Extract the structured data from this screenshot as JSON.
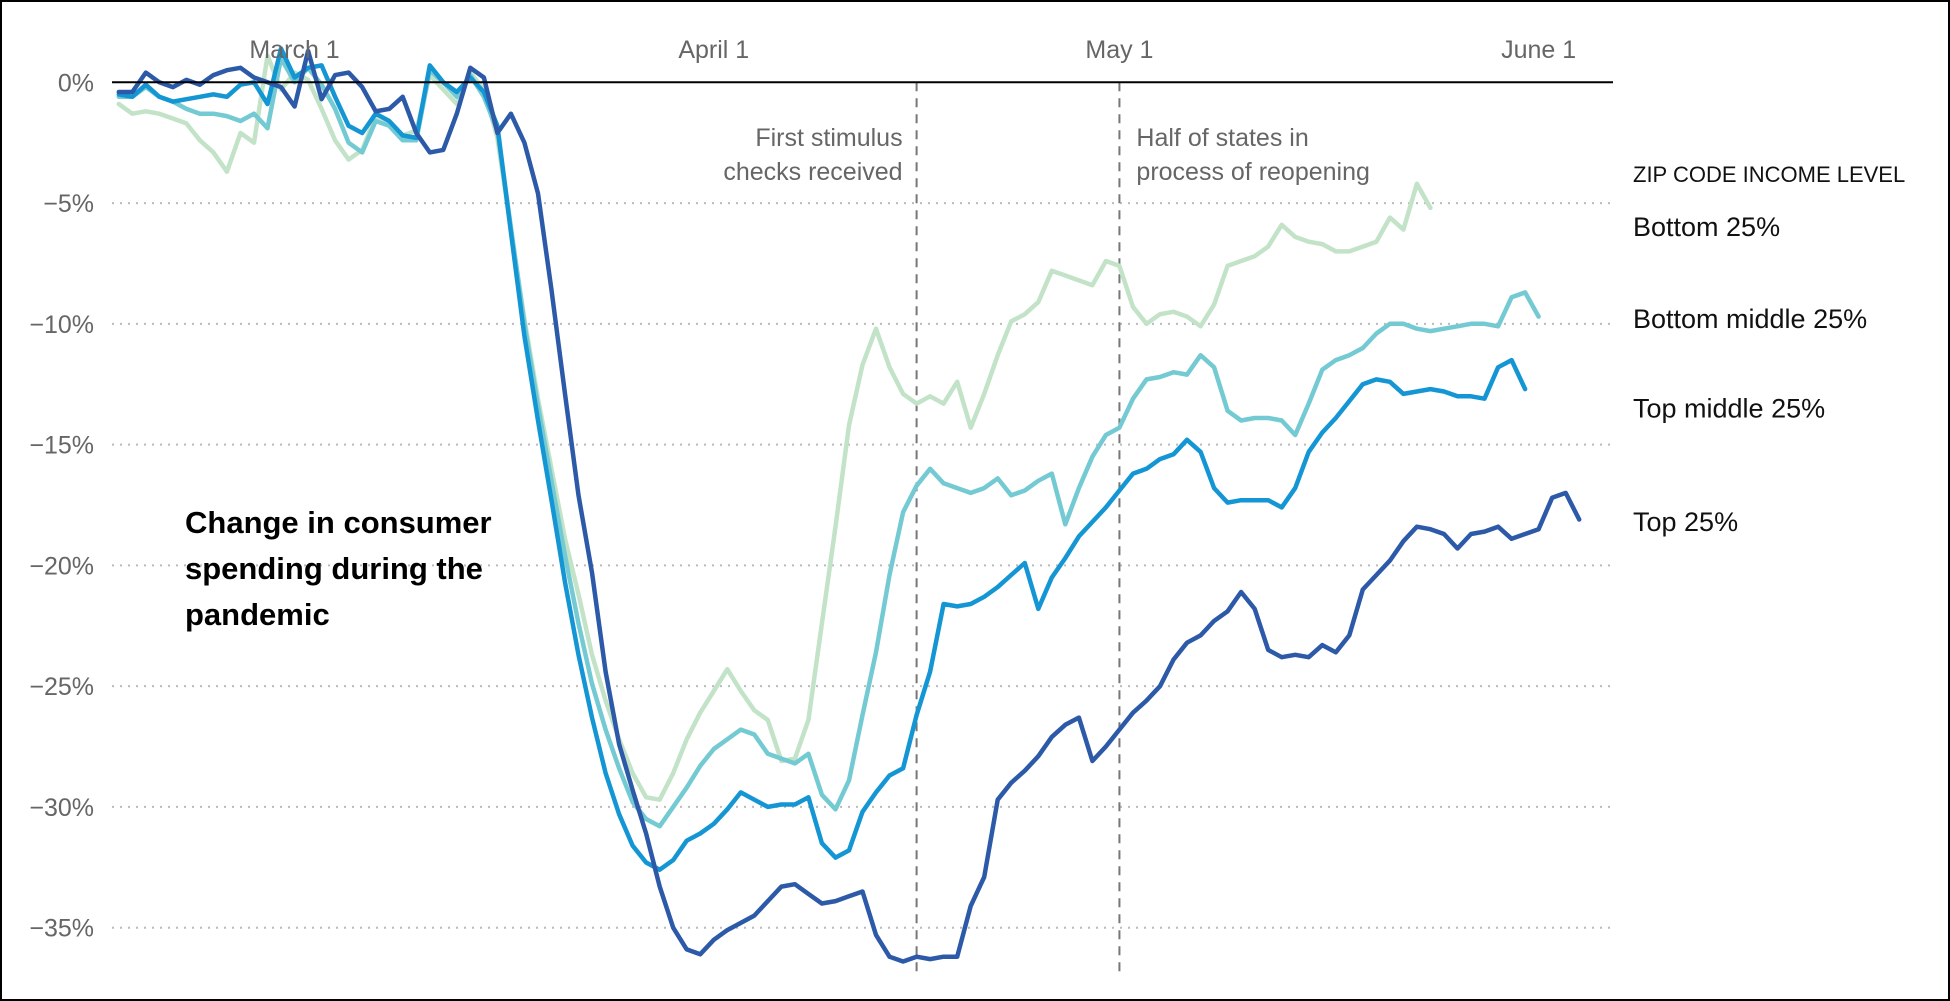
{
  "chart_data": {
    "type": "line",
    "title": "Change in consumer spending during the pandemic",
    "title_lines": [
      "Change in consumer",
      "spending during the",
      "pandemic"
    ],
    "xlabel": "",
    "ylabel": "",
    "x_ticks": [
      "March 1",
      "April 1",
      "May 1",
      "June 1"
    ],
    "x_tick_days": [
      0,
      31,
      61,
      92
    ],
    "x_start_day": -13,
    "xlim": [
      -13.5,
      97.5
    ],
    "y_ticks": [
      0,
      -5,
      -10,
      -15,
      -20,
      -25,
      -30,
      -35
    ],
    "y_tick_labels": [
      "0%",
      "−5%",
      "−10%",
      "−15%",
      "−20%",
      "−25%",
      "−30%",
      "−35%"
    ],
    "ylim": [
      -37,
      2
    ],
    "grid": "dotted-horizontal",
    "annotations": [
      {
        "name": "stimulus",
        "day": 46,
        "lines": [
          "First stimulus",
          "checks received"
        ],
        "align": "end"
      },
      {
        "name": "reopening",
        "day": 61,
        "lines": [
          "Half of states in",
          "process of reopening"
        ],
        "align": "start"
      }
    ],
    "legend_title": "ZIP CODE INCOME LEVEL",
    "series": [
      {
        "name": "Bottom 25%",
        "color": "#c3e3c8",
        "label_value": -6,
        "values": [
          -0.9,
          -1.3,
          -1.2,
          -1.3,
          -1.5,
          -1.7,
          -2.4,
          -2.9,
          -3.7,
          -2.1,
          -2.5,
          1.1,
          -0.3,
          0.4,
          0.1,
          -1.1,
          -2.4,
          -3.2,
          -2.8,
          -1.4,
          -1.6,
          -2.2,
          -2.0,
          0.3,
          -0.3,
          -0.9,
          0.4,
          -0.3,
          -2.3,
          -6.1,
          -9.8,
          -13.1,
          -16.0,
          -18.9,
          -21.2,
          -23.7,
          -25.6,
          -27.2,
          -28.6,
          -29.6,
          -29.7,
          -28.6,
          -27.2,
          -26.1,
          -25.2,
          -24.3,
          -25.2,
          -26.0,
          -26.4,
          -28.1,
          -28.0,
          -26.4,
          -22.4,
          -18.4,
          -14.2,
          -11.7,
          -10.2,
          -11.8,
          -12.9,
          -13.3,
          -13.0,
          -13.3,
          -12.4,
          -14.3,
          -12.9,
          -11.3,
          -9.9,
          -9.6,
          -9.1,
          -7.8,
          -8.0,
          -8.2,
          -8.4,
          -7.4,
          -7.6,
          -9.3,
          -10.0,
          -9.6,
          -9.5,
          -9.7,
          -10.1,
          -9.2,
          -7.6,
          -7.4,
          -7.2,
          -6.8,
          -5.9,
          -6.4,
          -6.6,
          -6.7,
          -7.0,
          -7.0,
          -6.8,
          -6.6,
          -5.6,
          -6.1,
          -4.2,
          -5.2
        ]
      },
      {
        "name": "Bottom middle 25%",
        "color": "#74cad2",
        "label_value": -9.8,
        "values": [
          -0.6,
          -0.6,
          -0.2,
          -0.6,
          -0.8,
          -1.1,
          -1.3,
          -1.3,
          -1.4,
          -1.6,
          -1.3,
          -1.9,
          1.0,
          0.0,
          0.6,
          -0.1,
          -1.1,
          -2.5,
          -2.9,
          -1.6,
          -1.8,
          -2.4,
          -2.4,
          0.5,
          0.0,
          -0.6,
          0.3,
          -0.6,
          -2.0,
          -6.0,
          -10.0,
          -13.4,
          -16.5,
          -19.6,
          -22.4,
          -24.9,
          -26.8,
          -28.4,
          -29.8,
          -30.5,
          -30.8,
          -30.0,
          -29.2,
          -28.3,
          -27.6,
          -27.2,
          -26.8,
          -27.0,
          -27.8,
          -28.0,
          -28.2,
          -27.8,
          -29.5,
          -30.1,
          -28.9,
          -26.2,
          -23.6,
          -20.4,
          -17.8,
          -16.7,
          -16.0,
          -16.6,
          -16.8,
          -17.0,
          -16.8,
          -16.4,
          -17.1,
          -16.9,
          -16.5,
          -16.2,
          -18.3,
          -16.8,
          -15.5,
          -14.6,
          -14.3,
          -13.1,
          -12.3,
          -12.2,
          -12.0,
          -12.1,
          -11.3,
          -11.8,
          -13.6,
          -14.0,
          -13.9,
          -13.9,
          -14.0,
          -14.6,
          -13.3,
          -11.9,
          -11.5,
          -11.3,
          -11.0,
          -10.4,
          -10.0,
          -10.0,
          -10.2,
          -10.3,
          -10.2,
          -10.1,
          -10.0,
          -10.0,
          -10.1,
          -8.9,
          -8.7,
          -9.7
        ]
      },
      {
        "name": "Top middle 25%",
        "color": "#1496d4",
        "label_value": -13.5,
        "values": [
          -0.5,
          -0.6,
          -0.1,
          -0.6,
          -0.8,
          -0.7,
          -0.6,
          -0.5,
          -0.6,
          -0.1,
          0.0,
          -0.9,
          1.4,
          0.2,
          0.6,
          0.7,
          -0.6,
          -1.8,
          -2.1,
          -1.3,
          -1.6,
          -2.2,
          -2.3,
          0.7,
          0.0,
          -0.4,
          0.2,
          -0.4,
          -1.8,
          -6.2,
          -10.5,
          -14.0,
          -17.3,
          -20.7,
          -23.7,
          -26.3,
          -28.6,
          -30.3,
          -31.6,
          -32.3,
          -32.6,
          -32.2,
          -31.4,
          -31.1,
          -30.7,
          -30.1,
          -29.4,
          -29.7,
          -30.0,
          -29.9,
          -29.9,
          -29.6,
          -31.5,
          -32.1,
          -31.8,
          -30.2,
          -29.4,
          -28.7,
          -28.4,
          -26.2,
          -24.4,
          -21.6,
          -21.7,
          -21.6,
          -21.3,
          -20.9,
          -20.4,
          -19.9,
          -21.8,
          -20.5,
          -19.7,
          -18.8,
          -18.2,
          -17.6,
          -16.9,
          -16.2,
          -16.0,
          -15.6,
          -15.4,
          -14.8,
          -15.3,
          -16.8,
          -17.4,
          -17.3,
          -17.3,
          -17.3,
          -17.6,
          -16.8,
          -15.3,
          -14.5,
          -13.9,
          -13.2,
          -12.5,
          -12.3,
          -12.4,
          -12.9,
          -12.8,
          -12.7,
          -12.8,
          -13.0,
          -13.0,
          -13.1,
          -11.8,
          -11.5,
          -12.7
        ]
      },
      {
        "name": "Top 25%",
        "color": "#2c5aa8",
        "label_value": -18.2,
        "values": [
          -0.4,
          -0.4,
          0.4,
          0.0,
          -0.2,
          0.1,
          -0.1,
          0.3,
          0.5,
          0.6,
          0.2,
          0.0,
          -0.2,
          -1.0,
          1.3,
          -0.7,
          0.3,
          0.4,
          -0.2,
          -1.2,
          -1.1,
          -0.6,
          -2.1,
          -2.9,
          -2.8,
          -1.3,
          0.6,
          0.2,
          -2.1,
          -1.3,
          -2.5,
          -4.6,
          -8.6,
          -12.9,
          -17.1,
          -20.3,
          -24.4,
          -27.4,
          -29.3,
          -31.1,
          -33.3,
          -35.0,
          -35.9,
          -36.1,
          -35.5,
          -35.1,
          -34.8,
          -34.5,
          -33.9,
          -33.3,
          -33.2,
          -33.6,
          -34.0,
          -33.9,
          -33.7,
          -33.5,
          -35.3,
          -36.2,
          -36.4,
          -36.2,
          -36.3,
          -36.2,
          -36.2,
          -34.1,
          -32.9,
          -29.7,
          -29.0,
          -28.5,
          -27.9,
          -27.1,
          -26.6,
          -26.3,
          -28.1,
          -27.5,
          -26.8,
          -26.1,
          -25.6,
          -25.0,
          -23.9,
          -23.2,
          -22.9,
          -22.3,
          -21.9,
          -21.1,
          -21.8,
          -23.5,
          -23.8,
          -23.7,
          -23.8,
          -23.3,
          -23.6,
          -22.9,
          -21.0,
          -20.4,
          -19.8,
          -19.0,
          -18.4,
          -18.5,
          -18.7,
          -19.3,
          -18.7,
          -18.6,
          -18.4,
          -18.9,
          -18.7,
          -18.5,
          -17.2,
          -17.0,
          -18.1
        ]
      }
    ]
  }
}
